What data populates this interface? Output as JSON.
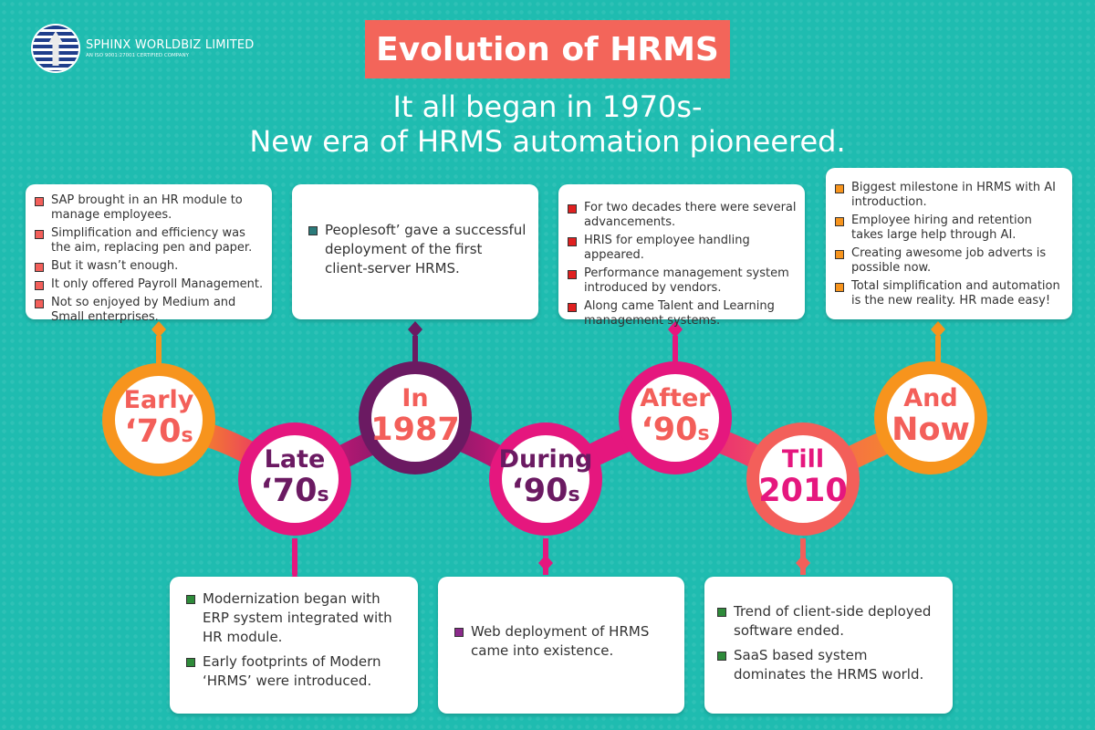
{
  "logo": {
    "name": "SPHINX WORLDBIZ LIMITED",
    "tagline": "AN ISO 9001:27001 CERTIFIED COMPANY"
  },
  "title": "Evolution of HRMS",
  "subtitle": {
    "line1": "It all began in 1970s-",
    "line2": "New era of HRMS automation pioneered."
  },
  "colors": {
    "background": "#1fbcb0",
    "title_bg": "#f3655a",
    "orange": "#f7941d",
    "purple": "#6b1a62",
    "magenta": "#e5177e",
    "coral": "#f35f5a",
    "text_purple": "#6b1a62",
    "text_coral": "#f35f5a",
    "text_magenta": "#e5177e"
  },
  "milestones": [
    {
      "id": "early-70s",
      "line1": "Early",
      "line2": "‘70",
      "suffix": "s",
      "card_items": [
        "SAP brought in an HR module to manage employees.",
        "Simplification and efficiency was the aim, replacing pen and paper.",
        "But it wasn’t enough.",
        "It only offered Payroll Management.",
        "Not so enjoyed by Medium and Small enterprises."
      ],
      "bullet_color": "#f35f5a"
    },
    {
      "id": "late-70s",
      "line1": "Late",
      "line2": "‘70",
      "suffix": "s",
      "card_items": [
        "Modernization began with ERP system integrated with HR module.",
        "Early footprints of Modern ‘HRMS’ were introduced."
      ],
      "bullet_color": "#2e8b3a"
    },
    {
      "id": "in-1987",
      "line1": "In",
      "line2": "1987",
      "suffix": "",
      "card_items": [
        "Peoplesoft’ gave a successful deployment of the first client-server HRMS."
      ],
      "bullet_color": "#2a7a7a"
    },
    {
      "id": "during-90s",
      "line1": "During",
      "line2": "‘90",
      "suffix": "s",
      "card_items": [
        "Web deployment of HRMS came into existence."
      ],
      "bullet_color": "#8b2a8b"
    },
    {
      "id": "after-90s",
      "line1": "After",
      "line2": "‘90",
      "suffix": "s",
      "card_items": [
        "For two decades there were several advancements.",
        "HRIS for employee handling appeared.",
        "Performance management system introduced by vendors.",
        "Along came Talent and Learning management systems."
      ],
      "bullet_color": "#e02020"
    },
    {
      "id": "till-2010",
      "line1": "Till",
      "line2": "2010",
      "suffix": "",
      "card_items": [
        "Trend of client-side deployed software ended.",
        "SaaS based system dominates the HRMS world."
      ],
      "bullet_color": "#2e8b3a"
    },
    {
      "id": "and-now",
      "line1": "And",
      "line2": "Now",
      "suffix": "",
      "card_items": [
        "Biggest milestone in HRMS with AI introduction.",
        "Employee hiring and retention takes large help through AI.",
        "Creating awesome job adverts is possible now.",
        "Total simplification and automation is the new reality. HR made easy!"
      ],
      "bullet_color": "#f7941d"
    }
  ]
}
